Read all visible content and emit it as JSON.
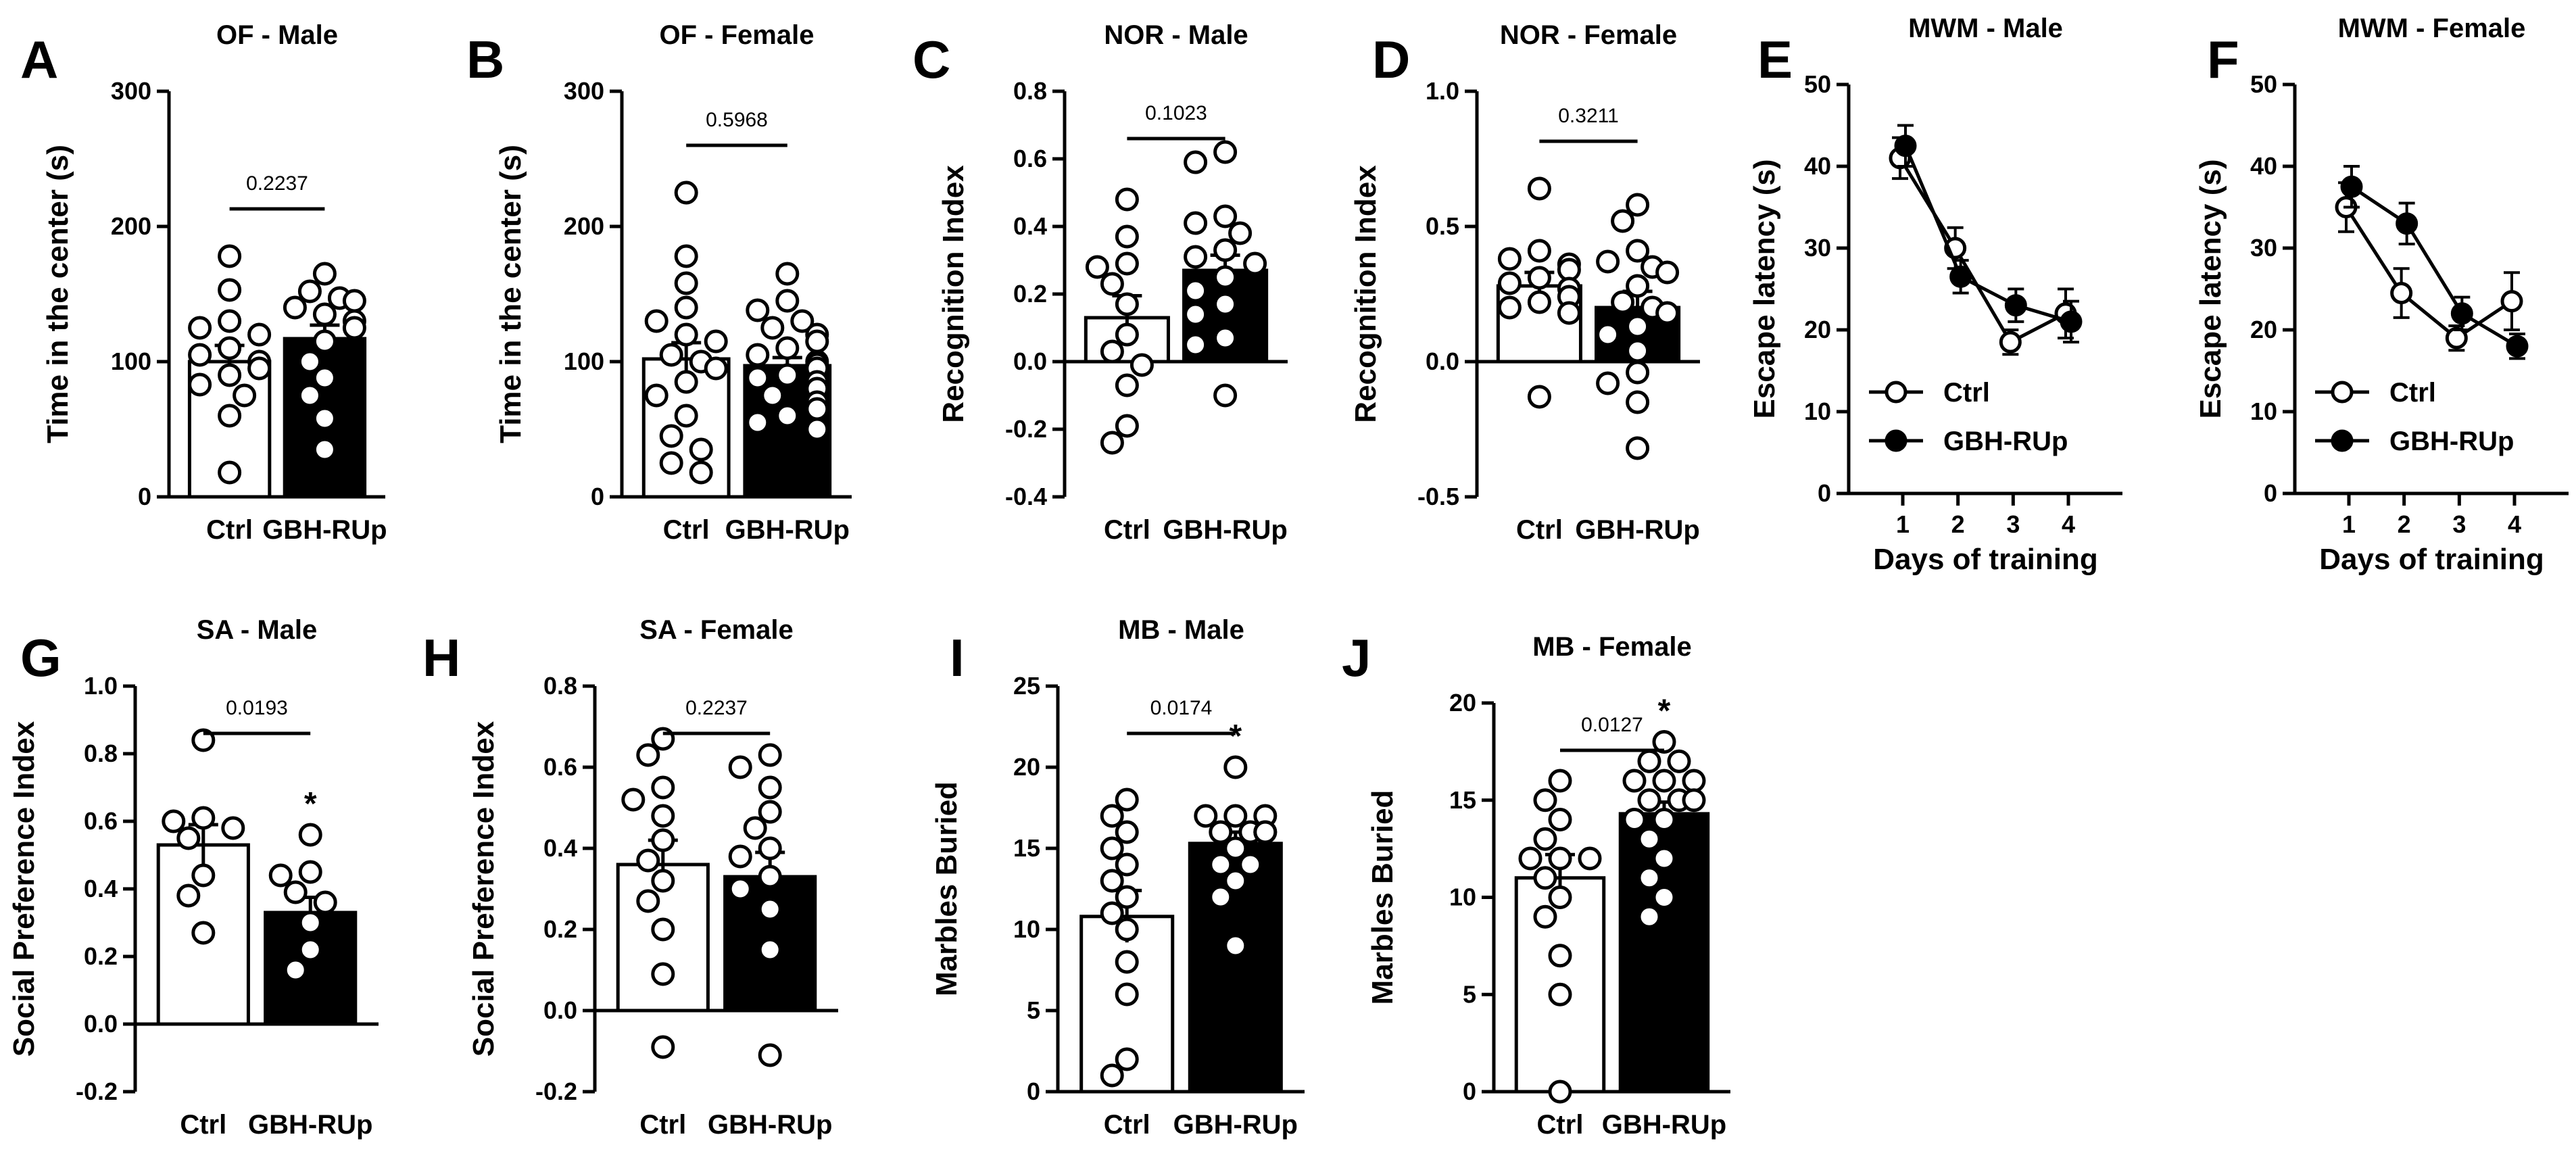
{
  "colors": {
    "ink": "#000000",
    "ctrl_fill": "#ffffff",
    "gbh_fill": "#000000"
  },
  "chart_data": [
    {
      "id": "A",
      "letter": "A",
      "type": "bar",
      "title": "OF - Male",
      "ylabel": "Time in the center (s)",
      "xlabel": "",
      "ylim": [
        0,
        300
      ],
      "yticks": [
        0,
        100,
        200,
        300
      ],
      "tick_labels": [
        "0",
        "100",
        "200",
        "300"
      ],
      "categories": [
        "Ctrl",
        "GBH-RUp"
      ],
      "values": [
        100,
        117
      ],
      "sem": [
        12,
        10
      ],
      "points": [
        [
          178,
          153,
          130,
          125,
          120,
          110,
          105,
          100,
          95,
          90,
          83,
          75,
          60,
          18
        ],
        [
          165,
          152,
          147,
          145,
          140,
          135,
          130,
          125,
          115,
          100,
          88,
          75,
          58,
          35
        ]
      ],
      "p_label": "0.2237",
      "stars": [
        "",
        ""
      ]
    },
    {
      "id": "B",
      "letter": "B",
      "type": "bar",
      "title": "OF - Female",
      "ylabel": "Time in the center (s)",
      "xlabel": "",
      "ylim": [
        0,
        300
      ],
      "yticks": [
        0,
        100,
        200,
        300
      ],
      "tick_labels": [
        "0",
        "100",
        "200",
        "300"
      ],
      "categories": [
        "Ctrl",
        "GBH-RUp"
      ],
      "values": [
        102,
        97
      ],
      "sem": [
        12,
        6
      ],
      "points": [
        [
          225,
          178,
          158,
          140,
          130,
          120,
          115,
          105,
          100,
          95,
          85,
          75,
          60,
          45,
          35,
          25,
          18
        ],
        [
          165,
          145,
          138,
          130,
          125,
          120,
          115,
          110,
          105,
          100,
          98,
          95,
          90,
          88,
          85,
          80,
          75,
          70,
          65,
          60,
          55,
          50
        ]
      ],
      "p_label": "0.5968",
      "stars": [
        "",
        ""
      ]
    },
    {
      "id": "C",
      "letter": "C",
      "type": "bar",
      "title": "NOR - Male",
      "ylabel": "Recognition Index",
      "xlabel": "",
      "ylim": [
        -0.4,
        0.8
      ],
      "yticks": [
        -0.4,
        -0.2,
        0.0,
        0.2,
        0.4,
        0.6,
        0.8
      ],
      "tick_labels": [
        "-0.4",
        "-0.2",
        "0.0",
        "0.2",
        "0.4",
        "0.6",
        "0.8"
      ],
      "categories": [
        "Ctrl",
        "GBH-RUp"
      ],
      "values": [
        0.13,
        0.27
      ],
      "sem": [
        0.065,
        0.045
      ],
      "points": [
        [
          0.48,
          0.37,
          0.29,
          0.28,
          0.23,
          0.17,
          0.08,
          0.03,
          -0.01,
          -0.07,
          -0.19,
          -0.24
        ],
        [
          0.62,
          0.59,
          0.43,
          0.41,
          0.38,
          0.33,
          0.31,
          0.29,
          0.25,
          0.21,
          0.17,
          0.14,
          0.07,
          0.05,
          -0.1
        ]
      ],
      "p_label": "0.1023",
      "stars": [
        "",
        ""
      ]
    },
    {
      "id": "D",
      "letter": "D",
      "type": "bar",
      "title": "NOR - Female",
      "ylabel": "Recognition Index",
      "xlabel": "",
      "ylim": [
        -0.5,
        1.0
      ],
      "yticks": [
        -0.5,
        0.0,
        0.5,
        1.0
      ],
      "tick_labels": [
        "-0.5",
        "0.0",
        "0.5",
        "1.0"
      ],
      "categories": [
        "Ctrl",
        "GBH-RUp"
      ],
      "values": [
        0.28,
        0.2
      ],
      "sem": [
        0.05,
        0.06
      ],
      "points": [
        [
          0.64,
          0.41,
          0.38,
          0.36,
          0.34,
          0.31,
          0.29,
          0.27,
          0.24,
          0.22,
          0.2,
          0.18,
          -0.13
        ],
        [
          0.58,
          0.52,
          0.41,
          0.37,
          0.35,
          0.33,
          0.28,
          0.22,
          0.2,
          0.18,
          0.13,
          0.1,
          0.04,
          -0.04,
          -0.08,
          -0.15,
          -0.32
        ]
      ],
      "p_label": "0.3211",
      "stars": [
        "",
        ""
      ]
    },
    {
      "id": "E",
      "letter": "E",
      "type": "line",
      "title": "MWM - Male",
      "ylabel": "Escape latency (s)",
      "xlabel": "Days of training",
      "ylim": [
        0,
        50
      ],
      "yticks": [
        0,
        10,
        20,
        30,
        40,
        50
      ],
      "tick_labels": [
        "0",
        "10",
        "20",
        "30",
        "40",
        "50"
      ],
      "x": [
        1,
        2,
        3,
        4
      ],
      "x_tick_labels": [
        "1",
        "2",
        "3",
        "4"
      ],
      "series": [
        {
          "name": "Ctrl",
          "values": [
            41,
            30,
            18.5,
            22
          ],
          "sem": [
            2.5,
            2.5,
            1.5,
            3
          ]
        },
        {
          "name": "GBH-RUp",
          "values": [
            42.5,
            26.5,
            23,
            21
          ],
          "sem": [
            2.5,
            2,
            2,
            2.5
          ]
        }
      ]
    },
    {
      "id": "F",
      "letter": "F",
      "type": "line",
      "title": "MWM - Female",
      "ylabel": "Escape latency (s)",
      "xlabel": "Days of training",
      "ylim": [
        0,
        50
      ],
      "yticks": [
        0,
        10,
        20,
        30,
        40,
        50
      ],
      "tick_labels": [
        "0",
        "10",
        "20",
        "30",
        "40",
        "50"
      ],
      "x": [
        1,
        2,
        3,
        4
      ],
      "x_tick_labels": [
        "1",
        "2",
        "3",
        "4"
      ],
      "series": [
        {
          "name": "Ctrl",
          "values": [
            35,
            24.5,
            19,
            23.5
          ],
          "sem": [
            3,
            3,
            1.5,
            3.5
          ]
        },
        {
          "name": "GBH-RUp",
          "values": [
            37.5,
            33,
            22,
            18
          ],
          "sem": [
            2.5,
            2.5,
            2,
            1.5
          ]
        }
      ]
    },
    {
      "id": "G",
      "letter": "G",
      "type": "bar",
      "title": "SA - Male",
      "ylabel": "Social Preference Index",
      "xlabel": "",
      "ylim": [
        -0.2,
        1.0
      ],
      "yticks": [
        -0.2,
        0.0,
        0.2,
        0.4,
        0.6,
        0.8,
        1.0
      ],
      "tick_labels": [
        "-0.2",
        "0.0",
        "0.2",
        "0.4",
        "0.6",
        "0.8",
        "1.0"
      ],
      "categories": [
        "Ctrl",
        "GBH-RUp"
      ],
      "values": [
        0.53,
        0.33
      ],
      "sem": [
        0.06,
        0.045
      ],
      "points": [
        [
          0.84,
          0.61,
          0.6,
          0.58,
          0.55,
          0.44,
          0.38,
          0.27
        ],
        [
          0.56,
          0.45,
          0.44,
          0.39,
          0.36,
          0.3,
          0.22,
          0.16
        ]
      ],
      "p_label": "0.0193",
      "stars": [
        "",
        "*"
      ]
    },
    {
      "id": "H",
      "letter": "H",
      "type": "bar",
      "title": "SA - Female",
      "ylabel": "Social Preference Index",
      "xlabel": "",
      "ylim": [
        -0.2,
        0.8
      ],
      "yticks": [
        -0.2,
        0.0,
        0.2,
        0.4,
        0.6,
        0.8
      ],
      "tick_labels": [
        "-0.2",
        "0.0",
        "0.2",
        "0.4",
        "0.6",
        "0.8"
      ],
      "categories": [
        "Ctrl",
        "GBH-RUp"
      ],
      "values": [
        0.36,
        0.33
      ],
      "sem": [
        0.06,
        0.06
      ],
      "points": [
        [
          0.67,
          0.63,
          0.55,
          0.52,
          0.48,
          0.42,
          0.37,
          0.32,
          0.27,
          0.2,
          0.09,
          -0.09
        ],
        [
          0.63,
          0.6,
          0.55,
          0.49,
          0.45,
          0.4,
          0.38,
          0.33,
          0.3,
          0.25,
          0.15,
          -0.11
        ]
      ],
      "p_label": "0.2237",
      "stars": [
        "",
        ""
      ]
    },
    {
      "id": "I",
      "letter": "I",
      "type": "bar",
      "title": "MB - Male",
      "ylabel": "Marbles Buried",
      "xlabel": "",
      "ylim": [
        0,
        25
      ],
      "yticks": [
        0,
        5,
        10,
        15,
        20,
        25
      ],
      "tick_labels": [
        "0",
        "5",
        "10",
        "15",
        "20",
        "25"
      ],
      "categories": [
        "Ctrl",
        "GBH-RUp"
      ],
      "values": [
        10.8,
        15.3
      ],
      "sem": [
        1.6,
        0.7
      ],
      "points": [
        [
          18,
          17,
          16,
          15,
          14,
          13,
          12,
          11,
          10,
          8,
          6,
          2,
          1
        ],
        [
          20,
          17,
          17,
          17,
          16,
          16,
          16,
          16,
          15,
          14,
          14,
          13,
          12,
          9
        ]
      ],
      "p_label": "0.0174",
      "stars": [
        "",
        "*"
      ]
    },
    {
      "id": "J",
      "letter": "J",
      "type": "bar",
      "title": "MB - Female",
      "ylabel": "Marbles Buried",
      "xlabel": "",
      "ylim": [
        0,
        20
      ],
      "yticks": [
        0,
        5,
        10,
        15,
        20
      ],
      "tick_labels": [
        "0",
        "5",
        "10",
        "15",
        "20"
      ],
      "categories": [
        "Ctrl",
        "GBH-RUp"
      ],
      "values": [
        11,
        14.3
      ],
      "sem": [
        1.2,
        0.6
      ],
      "points": [
        [
          16,
          15,
          14,
          13,
          12,
          12,
          12,
          11,
          10,
          9,
          7,
          5,
          0
        ],
        [
          18,
          17,
          17,
          16,
          16,
          16,
          15,
          15,
          15,
          14,
          14,
          13,
          12,
          11,
          10,
          9
        ]
      ],
      "p_label": "0.0127",
      "stars": [
        "",
        "*"
      ]
    }
  ]
}
